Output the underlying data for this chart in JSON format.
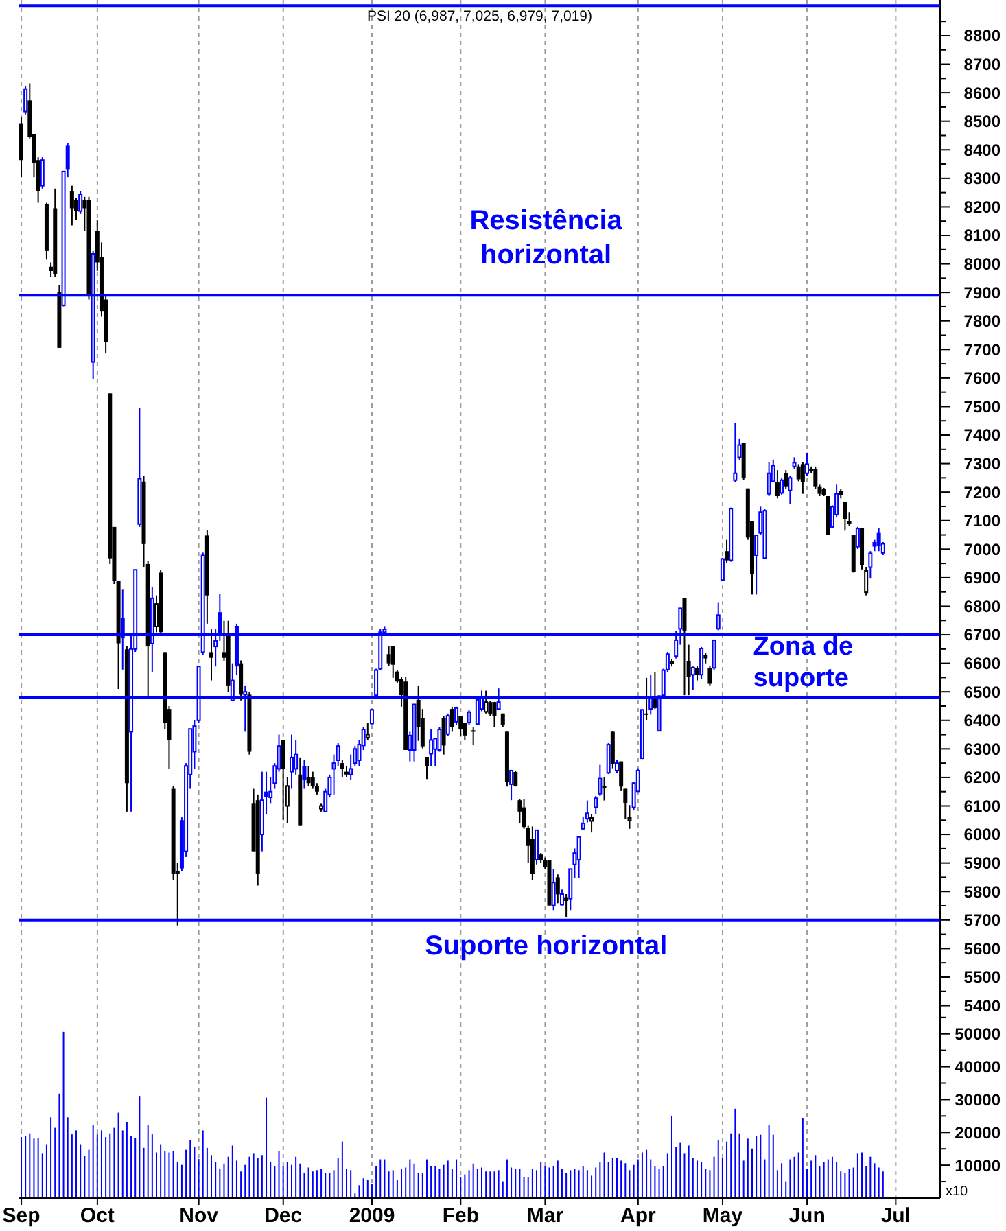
{
  "chart_data": [
    {
      "type": "candlestick",
      "title": "PSI 20 (6,987, 7,025, 6,979, 7,019)",
      "categories": [
        null,
        null,
        null,
        null,
        null,
        null,
        null,
        null,
        null,
        null,
        null,
        null,
        null,
        null,
        null,
        null,
        null,
        null,
        null,
        null,
        null,
        null,
        null,
        null,
        null,
        null,
        null,
        null,
        null,
        null,
        null,
        null,
        null,
        null,
        null,
        null,
        null,
        null,
        null,
        null,
        null,
        null,
        null,
        null,
        null,
        null,
        null,
        null,
        null,
        null,
        null,
        null,
        null,
        null,
        null,
        null,
        null,
        null,
        null,
        null,
        null,
        null,
        null,
        null,
        null,
        null,
        null,
        null,
        null,
        null,
        null,
        null,
        null,
        null,
        null,
        null,
        null,
        null,
        null,
        null,
        null,
        null,
        null,
        null,
        null,
        null,
        null,
        null,
        null,
        null,
        null,
        null,
        null,
        null,
        null,
        null,
        null,
        null,
        null,
        null,
        null,
        null,
        null,
        null,
        null,
        null,
        null,
        null,
        null,
        null,
        null,
        null,
        null,
        null,
        null,
        null,
        null,
        null,
        null,
        null,
        null,
        null,
        null,
        null,
        null,
        null,
        null,
        null,
        null,
        null,
        null,
        null,
        null,
        null,
        null,
        null,
        null,
        null,
        null,
        null,
        null,
        null,
        null,
        null,
        null,
        null,
        null,
        null,
        null,
        null,
        null,
        null,
        null,
        null,
        null,
        null,
        null,
        null,
        null,
        null,
        null,
        null,
        null,
        null,
        null,
        null,
        null,
        null,
        null,
        null,
        null,
        null,
        null,
        null,
        null,
        null,
        null,
        null,
        null,
        null,
        null,
        null,
        null,
        null,
        null,
        null,
        null,
        null,
        null,
        null,
        null,
        null,
        null,
        null,
        null,
        null,
        null,
        null,
        null,
        null,
        null,
        null,
        null,
        null,
        null,
        null,
        null,
        null,
        null,
        null,
        null,
        null,
        null,
        null,
        null,
        null,
        null,
        null
      ],
      "ohlc": [
        [
          8493,
          8514,
          8304,
          8364
        ],
        [
          8534,
          8623,
          8524,
          8613
        ],
        [
          8573,
          8633,
          8440,
          8444
        ],
        [
          8454,
          8454,
          8304,
          8354
        ],
        [
          8364,
          8374,
          8214,
          8254
        ],
        [
          8274,
          8374,
          8264,
          8364
        ],
        [
          8210,
          8214,
          8015,
          8045
        ],
        [
          7990,
          8005,
          7955,
          7975
        ],
        [
          8195,
          8264,
          7955,
          7965
        ],
        [
          7900,
          7925,
          7706,
          7706
        ],
        [
          7855,
          8324,
          7851,
          8324
        ],
        [
          8414,
          8424,
          8304,
          8330
        ],
        [
          8254,
          8274,
          8135,
          8195
        ],
        [
          8224,
          8230,
          8155,
          8185
        ],
        [
          8185,
          8254,
          8175,
          8244
        ],
        [
          8224,
          8235,
          8115,
          8195
        ],
        [
          8224,
          8235,
          7875,
          7895
        ],
        [
          7656,
          8045,
          7596,
          8035
        ],
        [
          8115,
          8154,
          7975,
          8005
        ],
        [
          8025,
          8075,
          7815,
          7835
        ],
        [
          7875,
          7895,
          7686,
          7726
        ],
        [
          7546,
          7546,
          6948,
          6968
        ],
        [
          7078,
          7078,
          6878,
          6888
        ],
        [
          6888,
          6890,
          6510,
          6670
        ],
        [
          6758,
          6858,
          6578,
          6688
        ],
        [
          6649,
          6660,
          6080,
          6180
        ],
        [
          6360,
          6700,
          6080,
          6650
        ],
        [
          6650,
          6928,
          6640,
          6928
        ],
        [
          7088,
          7496,
          7078,
          7247
        ],
        [
          7237,
          7257,
          6938,
          7018
        ],
        [
          6948,
          6958,
          6480,
          6659
        ],
        [
          6669,
          6868,
          6569,
          6828
        ],
        [
          6729,
          6838,
          6709,
          6808
        ],
        [
          6918,
          6928,
          6699,
          6709
        ],
        [
          6639,
          6639,
          6370,
          6390
        ],
        [
          6440,
          6450,
          6230,
          6330
        ],
        [
          6160,
          6170,
          5841,
          5861
        ],
        [
          5871,
          5900,
          5681,
          5861
        ],
        [
          6050,
          6060,
          5871,
          5881
        ],
        [
          5941,
          6250,
          5921,
          6240
        ],
        [
          6210,
          6370,
          6160,
          6370
        ],
        [
          6290,
          6400,
          6230,
          6380
        ],
        [
          6400,
          6589,
          6390,
          6589
        ],
        [
          6639,
          6988,
          6629,
          6978
        ],
        [
          7048,
          7068,
          6739,
          6838
        ],
        [
          6639,
          6719,
          6540,
          6619
        ],
        [
          6659,
          6719,
          6589,
          6679
        ],
        [
          6779,
          6843,
          6679,
          6703
        ],
        [
          6639,
          6749,
          6609,
          6619
        ],
        [
          6699,
          6749,
          6500,
          6520
        ],
        [
          6470,
          6600,
          6470,
          6540
        ],
        [
          6729,
          6739,
          6560,
          6589
        ],
        [
          6600,
          6610,
          6470,
          6490
        ],
        [
          6490,
          6520,
          6360,
          6500
        ],
        [
          6490,
          6500,
          6280,
          6290
        ],
        [
          6110,
          6160,
          5941,
          5941
        ],
        [
          6120,
          6140,
          5821,
          5861
        ],
        [
          6000,
          6220,
          5941,
          6120
        ],
        [
          6150,
          6220,
          6070,
          6130
        ],
        [
          6130,
          6200,
          6110,
          6150
        ],
        [
          6180,
          6250,
          6160,
          6240
        ],
        [
          6230,
          6350,
          6220,
          6310
        ],
        [
          6330,
          6330,
          6050,
          6230
        ],
        [
          6100,
          6200,
          6040,
          6170
        ],
        [
          6220,
          6350,
          6160,
          6270
        ],
        [
          6230,
          6330,
          6210,
          6280
        ],
        [
          6210,
          6270,
          6030,
          6030
        ],
        [
          6240,
          6260,
          6160,
          6190
        ],
        [
          6200,
          6240,
          6170,
          6180
        ],
        [
          6200,
          6220,
          6160,
          6170
        ],
        [
          6170,
          6180,
          6140,
          6150
        ],
        [
          6090,
          6110,
          6080,
          6100
        ],
        [
          6080,
          6160,
          6080,
          6150
        ],
        [
          6140,
          6210,
          6130,
          6200
        ],
        [
          6230,
          6280,
          6140,
          6250
        ],
        [
          6260,
          6320,
          6240,
          6310
        ],
        [
          6250,
          6260,
          6200,
          6230
        ],
        [
          6220,
          6240,
          6200,
          6210
        ],
        [
          6210,
          6280,
          6190,
          6230
        ],
        [
          6250,
          6310,
          6240,
          6300
        ],
        [
          6260,
          6330,
          6240,
          6315
        ],
        [
          6312,
          6376,
          6296,
          6368
        ],
        [
          6340,
          6392,
          6330,
          6350
        ],
        [
          6389,
          6440,
          6386,
          6437
        ],
        [
          6488,
          6581,
          6485,
          6576
        ],
        [
          6581,
          6720,
          6576,
          6709
        ],
        [
          6709,
          6728,
          6704,
          6719
        ],
        [
          6632,
          6660,
          6590,
          6600
        ],
        [
          6661,
          6661,
          6549,
          6595
        ],
        [
          6571,
          6575,
          6530,
          6536
        ],
        [
          6544,
          6552,
          6448,
          6488
        ],
        [
          6536,
          6552,
          6296,
          6296
        ],
        [
          6296,
          6360,
          6256,
          6347
        ],
        [
          6296,
          6456,
          6256,
          6456
        ],
        [
          6472,
          6520,
          6328,
          6376
        ],
        [
          6408,
          6440,
          6302,
          6309
        ],
        [
          6272,
          6272,
          6192,
          6240
        ],
        [
          6283,
          6368,
          6240,
          6331
        ],
        [
          6299,
          6336,
          6240,
          6336
        ],
        [
          6296,
          6376,
          6290,
          6368
        ],
        [
          6408,
          6416,
          6280,
          6312
        ],
        [
          6352,
          6424,
          6344,
          6416
        ],
        [
          6440,
          6445,
          6360,
          6376
        ],
        [
          6395,
          6448,
          6384,
          6443
        ],
        [
          6416,
          6416,
          6344,
          6368
        ],
        [
          6392,
          6392,
          6330,
          6347
        ],
        [
          6392,
          6437,
          6384,
          6429
        ],
        [
          6365,
          6376,
          6315,
          6360
        ],
        [
          6387,
          6480,
          6384,
          6472
        ],
        [
          6440,
          6504,
          6432,
          6480
        ],
        [
          6430,
          6504,
          6424,
          6464
        ],
        [
          6464,
          6467,
          6416,
          6421
        ],
        [
          6464,
          6464,
          6376,
          6416
        ],
        [
          6440,
          6512,
          6437,
          6464
        ],
        [
          6424,
          6424,
          6376,
          6384
        ],
        [
          6360,
          6360,
          6168,
          6184
        ],
        [
          6176,
          6224,
          6120,
          6224
        ],
        [
          6219,
          6224,
          6168,
          6171
        ],
        [
          6120,
          6125,
          6040,
          6080
        ],
        [
          6095,
          6123,
          6020,
          6026
        ],
        [
          6024,
          6030,
          5900,
          5960
        ],
        [
          5984,
          6028,
          5839,
          5863
        ],
        [
          5911,
          6015,
          5895,
          6015
        ],
        [
          5930,
          5935,
          5900,
          5911
        ],
        [
          5911,
          5919,
          5879,
          5887
        ],
        [
          5911,
          5911,
          5751,
          5751
        ],
        [
          5751,
          5879,
          5735,
          5831
        ],
        [
          5850,
          5860,
          5759,
          5790
        ],
        [
          5754,
          5807,
          5751,
          5791
        ],
        [
          5780,
          5791,
          5711,
          5767
        ],
        [
          5775,
          5879,
          5735,
          5879
        ],
        [
          5895,
          5951,
          5847,
          5935
        ],
        [
          5911,
          5994,
          5847,
          5991
        ],
        [
          6020,
          6063,
          6015,
          6039
        ],
        [
          6055,
          6119,
          6042,
          6074
        ],
        [
          6047,
          6071,
          6007,
          6058
        ],
        [
          6095,
          6135,
          6071,
          6127
        ],
        [
          6143,
          6244,
          6135,
          6196
        ],
        [
          6170,
          6200,
          6119,
          6163
        ],
        [
          6216,
          6320,
          6212,
          6315
        ],
        [
          6360,
          6363,
          6232,
          6248
        ],
        [
          6224,
          6260,
          6216,
          6250
        ],
        [
          6256,
          6256,
          6152,
          6168
        ],
        [
          6160,
          6160,
          6055,
          6111
        ],
        [
          6050,
          6103,
          6020,
          6058
        ],
        [
          6095,
          6183,
          6087,
          6180
        ],
        [
          6151,
          6232,
          6151,
          6224
        ],
        [
          6267,
          6440,
          6264,
          6437
        ],
        [
          6424,
          6549,
          6400,
          6420
        ],
        [
          6440,
          6560,
          6420,
          6480
        ],
        [
          6480,
          6568,
          6440,
          6443
        ],
        [
          6363,
          6488,
          6363,
          6485
        ],
        [
          6488,
          6581,
          6480,
          6576
        ],
        [
          6578,
          6640,
          6568,
          6632
        ],
        [
          6608,
          6616,
          6589,
          6597
        ],
        [
          6625,
          6713,
          6617,
          6681
        ],
        [
          6721,
          6793,
          6665,
          6793
        ],
        [
          6828,
          6828,
          6488,
          6713
        ],
        [
          6608,
          6665,
          6488,
          6552
        ],
        [
          6560,
          6589,
          6507,
          6585
        ],
        [
          6584,
          6590,
          6540,
          6560
        ],
        [
          6560,
          6657,
          6544,
          6652
        ],
        [
          6629,
          6635,
          6600,
          6617
        ],
        [
          6584,
          6592,
          6520,
          6528
        ],
        [
          6584,
          6681,
          6576,
          6681
        ],
        [
          6721,
          6812,
          6716,
          6769
        ],
        [
          6892,
          6969,
          6889,
          6966
        ],
        [
          6993,
          7033,
          6953,
          6961
        ],
        [
          6961,
          7146,
          6956,
          7142
        ],
        [
          7242,
          7442,
          7234,
          7266
        ],
        [
          7322,
          7386,
          7314,
          7365
        ],
        [
          7373,
          7373,
          7242,
          7250
        ],
        [
          7213,
          7213,
          7033,
          7041
        ],
        [
          7097,
          7097,
          6841,
          6913
        ],
        [
          6977,
          7049,
          6841,
          7049
        ],
        [
          7057,
          7149,
          7049,
          7130
        ],
        [
          6969,
          7140,
          6966,
          7135
        ],
        [
          7194,
          7306,
          7186,
          7266
        ],
        [
          7238,
          7314,
          7234,
          7293
        ],
        [
          7234,
          7277,
          7178,
          7186
        ],
        [
          7197,
          7250,
          7190,
          7242
        ],
        [
          7266,
          7277,
          7210,
          7218
        ],
        [
          7206,
          7258,
          7158,
          7250
        ],
        [
          7290,
          7322,
          7282,
          7303
        ],
        [
          7290,
          7298,
          7238,
          7245
        ],
        [
          7298,
          7306,
          7194,
          7234
        ],
        [
          7266,
          7338,
          7258,
          7298
        ],
        [
          7282,
          7290,
          7266,
          7274
        ],
        [
          7282,
          7290,
          7210,
          7218
        ],
        [
          7218,
          7226,
          7186,
          7194
        ],
        [
          7210,
          7215,
          7186,
          7190
        ],
        [
          7186,
          7186,
          7049,
          7049
        ],
        [
          7078,
          7154,
          7073,
          7149
        ],
        [
          7121,
          7226,
          7113,
          7194
        ],
        [
          7204,
          7210,
          7178,
          7190
        ],
        [
          7165,
          7165,
          7065,
          7105
        ],
        [
          7097,
          7130,
          7081,
          7089
        ],
        [
          7049,
          7049,
          6918,
          6921
        ],
        [
          7009,
          7078,
          7001,
          7073
        ],
        [
          7073,
          7073,
          6929,
          6945
        ],
        [
          6849,
          6937,
          6838,
          6924
        ],
        [
          6937,
          6993,
          6897,
          6985
        ],
        [
          7025,
          7033,
          6993,
          7009
        ],
        [
          7057,
          7073,
          6993,
          7012
        ],
        [
          6987,
          7025,
          6979,
          7019
        ],
        null,
        null,
        null,
        null,
        null,
        null,
        null,
        null,
        null,
        null,
        null,
        null,
        null
      ],
      "colors": [
        "#000000",
        "#0000ff",
        "#000000",
        "#000000",
        "#000000",
        "#0000ff",
        "#000000",
        "#000000",
        "#000000",
        "#000000",
        "#0000ff",
        "#0000ff",
        "#000000",
        "#000000",
        "#0000ff",
        "#000000",
        "#000000",
        "#0000ff",
        "#000000",
        "#000000",
        "#000000",
        "#000000",
        "#000000",
        "#000000",
        "#0000ff",
        "#000000",
        "#0000ff",
        "#0000ff",
        "#0000ff",
        "#000000",
        "#000000",
        "#0000ff",
        "#000000",
        "#000000",
        "#000000",
        "#000000",
        "#000000",
        "#000000",
        "#0000ff",
        "#0000ff",
        "#0000ff",
        "#0000ff",
        "#0000ff",
        "#0000ff",
        "#000000",
        "#000000",
        "#0000ff",
        "#0000ff",
        "#000000",
        "#000000",
        "#0000ff",
        "#0000ff",
        "#000000",
        "#0000ff",
        "#000000",
        "#000000",
        "#000000",
        "#0000ff",
        "#0000ff",
        "#0000ff",
        "#0000ff",
        "#0000ff",
        "#000000",
        "#000000",
        "#0000ff",
        "#0000ff",
        "#000000",
        "#0000ff",
        "#000000",
        "#000000",
        "#000000",
        "#000000",
        "#0000ff",
        "#0000ff",
        "#0000ff",
        "#0000ff",
        "#000000",
        "#000000",
        "#0000ff",
        "#0000ff",
        "#0000ff",
        "#0000ff",
        "#000000",
        "#0000ff",
        "#0000ff",
        "#0000ff",
        "#0000ff",
        "#000000",
        "#000000",
        "#000000",
        "#000000",
        "#000000",
        "#0000ff",
        "#0000ff",
        "#000000",
        "#000000",
        "#000000",
        "#0000ff",
        "#0000ff",
        "#0000ff",
        "#000000",
        "#0000ff",
        "#000000",
        "#0000ff",
        "#000000",
        "#000000",
        "#0000ff",
        "#000000",
        "#0000ff",
        "#0000ff",
        "#000000",
        "#000000",
        "#000000",
        "#0000ff",
        "#000000",
        "#000000",
        "#0000ff",
        "#000000",
        "#000000",
        "#000000",
        "#000000",
        "#000000",
        "#0000ff",
        "#000000",
        "#000000",
        "#000000",
        "#0000ff",
        "#000000",
        "#0000ff",
        "#000000",
        "#0000ff",
        "#0000ff",
        "#0000ff",
        "#0000ff",
        "#0000ff",
        "#000000",
        "#0000ff",
        "#0000ff",
        "#000000",
        "#0000ff",
        "#000000",
        "#0000ff",
        "#000000",
        "#000000",
        "#000000",
        "#0000ff",
        "#0000ff",
        "#0000ff",
        "#000000",
        "#0000ff",
        "#000000",
        "#0000ff",
        "#0000ff",
        "#0000ff",
        "#000000",
        "#0000ff",
        "#0000ff",
        "#000000",
        "#000000",
        "#0000ff",
        "#000000",
        "#0000ff",
        "#000000",
        "#000000",
        "#0000ff",
        "#0000ff",
        "#0000ff",
        "#000000",
        "#0000ff",
        "#0000ff",
        "#0000ff",
        "#000000",
        "#000000",
        "#000000",
        "#0000ff",
        "#0000ff",
        "#0000ff",
        "#0000ff",
        "#0000ff",
        "#000000",
        "#0000ff",
        "#000000",
        "#0000ff",
        "#0000ff",
        "#000000",
        "#000000",
        "#0000ff",
        "#000000",
        "#000000",
        "#000000",
        "#000000",
        "#000000",
        "#0000ff",
        "#0000ff",
        "#000000",
        "#000000",
        "#000000",
        "#000000",
        "#0000ff",
        "#000000",
        "#000000",
        "#0000ff",
        "#0000ff",
        "#0000ff",
        "#0000ff",
        null,
        null,
        null,
        null,
        null,
        null,
        null,
        null,
        null,
        null,
        null,
        null,
        null
      ],
      "ylim": [
        5370,
        8925
      ],
      "yticks": [
        5400,
        {
          "value": 5450,
          "label": null
        },
        5500,
        {
          "value": 5550,
          "label": null
        },
        5600,
        {
          "value": 5650,
          "label": null
        },
        5700,
        {
          "value": 5750,
          "label": null
        },
        5800,
        {
          "value": 5850,
          "label": null
        },
        5900,
        {
          "value": 5950,
          "label": null
        },
        6000,
        {
          "value": 6050,
          "label": null
        },
        6100,
        {
          "value": 6150,
          "label": null
        },
        6200,
        {
          "value": 6250,
          "label": null
        },
        6300,
        {
          "value": 6350,
          "label": null
        },
        6400,
        {
          "value": 6450,
          "label": null
        },
        6500,
        {
          "value": 6550,
          "label": null
        },
        6600,
        {
          "value": 6650,
          "label": null
        },
        6700,
        {
          "value": 6750,
          "label": null
        },
        6800,
        {
          "value": 6850,
          "label": null
        },
        6900,
        {
          "value": 6950,
          "label": null
        },
        7000,
        {
          "value": 7050,
          "label": null
        },
        7100,
        {
          "value": 7150,
          "label": null
        },
        7200,
        {
          "value": 7250,
          "label": null
        },
        7300,
        {
          "value": 7350,
          "label": null
        },
        7400,
        {
          "value": 7450,
          "label": null
        },
        7500,
        {
          "value": 7550,
          "label": null
        },
        7600,
        {
          "value": 7650,
          "label": null
        },
        7700,
        {
          "value": 7750,
          "label": null
        },
        7800,
        {
          "value": 7850,
          "label": null
        },
        7900,
        {
          "value": 7950,
          "label": null
        },
        8000,
        {
          "value": 8050,
          "label": null
        },
        8100,
        {
          "value": 8150,
          "label": null
        },
        8200,
        {
          "value": 8250,
          "label": null
        },
        8300,
        {
          "value": 8350,
          "label": null
        },
        8400,
        {
          "value": 8450,
          "label": null
        },
        8500,
        {
          "value": 8550,
          "label": null
        },
        8600,
        {
          "value": 8650,
          "label": null
        },
        8700,
        {
          "value": 8750,
          "label": null
        },
        8800,
        {
          "value": 8850,
          "label": null
        }
      ],
      "grid": "x",
      "tick_labels": "y",
      "ref_lines": [
        {
          "axis": "y",
          "value": 8905,
          "color": "#0000ff"
        },
        {
          "axis": "y",
          "value": 7890,
          "label": "Resistência horizontal",
          "color": "#0000ff"
        },
        {
          "axis": "y",
          "value": 6700,
          "color": "#0000ff"
        },
        {
          "axis": "y",
          "value": 6480,
          "color": "#0000ff"
        },
        {
          "axis": "y",
          "value": 5700,
          "label": "Suporte horizontal",
          "color": "#0000ff"
        }
      ],
      "annotations": [
        "Zona de suporte"
      ]
    },
    {
      "type": "bar",
      "categories": [
        "Sep",
        null,
        null,
        null,
        null,
        null,
        null,
        null,
        null,
        null,
        null,
        null,
        null,
        null,
        null,
        null,
        null,
        null,
        "Oct",
        null,
        null,
        null,
        null,
        null,
        null,
        null,
        null,
        null,
        null,
        null,
        null,
        null,
        null,
        null,
        null,
        null,
        null,
        null,
        null,
        null,
        null,
        null,
        "Nov",
        null,
        null,
        null,
        null,
        null,
        null,
        null,
        null,
        null,
        null,
        null,
        null,
        null,
        null,
        null,
        null,
        null,
        null,
        null,
        "Dec",
        null,
        null,
        null,
        null,
        null,
        null,
        null,
        null,
        null,
        null,
        null,
        null,
        null,
        null,
        null,
        null,
        null,
        null,
        null,
        null,
        "2009",
        null,
        null,
        null,
        null,
        null,
        null,
        null,
        null,
        null,
        null,
        null,
        null,
        null,
        null,
        null,
        null,
        null,
        null,
        null,
        null,
        "Feb",
        null,
        null,
        null,
        null,
        null,
        null,
        null,
        null,
        null,
        null,
        null,
        null,
        null,
        null,
        null,
        null,
        null,
        null,
        null,
        "Mar",
        null,
        null,
        null,
        null,
        null,
        null,
        null,
        null,
        null,
        null,
        null,
        null,
        null,
        null,
        null,
        null,
        null,
        null,
        null,
        null,
        null,
        "Apr",
        null,
        null,
        null,
        null,
        null,
        null,
        null,
        null,
        null,
        null,
        null,
        null,
        null,
        null,
        null,
        null,
        null,
        null,
        null,
        "May",
        null,
        null,
        null,
        null,
        null,
        null,
        null,
        null,
        null,
        null,
        null,
        null,
        null,
        null,
        null,
        null,
        null,
        null,
        null,
        "Jun",
        null,
        null,
        null,
        null,
        null,
        null,
        null,
        null,
        null,
        null,
        null,
        null,
        null,
        null,
        null,
        null,
        null,
        null,
        null,
        null,
        "Jul",
        null,
        null,
        null,
        null,
        null,
        null,
        null,
        null,
        null,
        null
      ],
      "values": [
        18600,
        18900,
        19700,
        18100,
        18300,
        13500,
        16400,
        24600,
        21400,
        31800,
        50600,
        24600,
        19400,
        20600,
        16400,
        12800,
        14700,
        22200,
        19400,
        20600,
        18600,
        19700,
        21400,
        26000,
        20600,
        23200,
        18900,
        18300,
        31100,
        15300,
        22200,
        19400,
        13900,
        16400,
        14300,
        13900,
        14300,
        11000,
        10100,
        14700,
        17600,
        15500,
        11900,
        20600,
        15300,
        13100,
        11000,
        8900,
        10500,
        12600,
        16000,
        11400,
        8100,
        10100,
        12600,
        13500,
        12200,
        13100,
        30600,
        11000,
        9700,
        14300,
        9700,
        11000,
        10100,
        12600,
        10500,
        7600,
        9300,
        8100,
        8500,
        8900,
        7600,
        7600,
        8500,
        12200,
        17200,
        8900,
        8500,
        1400,
        3900,
        6000,
        5500,
        4300,
        9700,
        11800,
        11800,
        8100,
        8500,
        5500,
        8900,
        9300,
        11800,
        10500,
        7600,
        7600,
        11800,
        9700,
        9700,
        8900,
        10100,
        11400,
        8900,
        11800,
        6400,
        7200,
        8500,
        10500,
        8900,
        9300,
        8100,
        8100,
        8100,
        8500,
        5100,
        11800,
        9300,
        8900,
        8900,
        6400,
        6400,
        8900,
        8500,
        11000,
        9700,
        9300,
        9700,
        11400,
        8900,
        7600,
        8500,
        8900,
        8500,
        9700,
        8500,
        6800,
        9300,
        11000,
        13900,
        11000,
        12200,
        12200,
        11400,
        10600,
        8500,
        10100,
        11800,
        13900,
        14700,
        11800,
        9700,
        8900,
        9700,
        13500,
        25100,
        15600,
        16800,
        13500,
        16000,
        12200,
        11400,
        11000,
        8900,
        8500,
        12600,
        17600,
        12200,
        17200,
        19700,
        27200,
        19700,
        11400,
        18100,
        15100,
        18900,
        19300,
        11800,
        22200,
        19300,
        8500,
        10600,
        5100,
        11800,
        12600,
        13900,
        24300,
        8900,
        11400,
        13100,
        9700,
        11000,
        11800,
        12600,
        11000,
        8100,
        7600,
        8900,
        9300,
        13500,
        13900,
        9700,
        12600,
        10600,
        9300,
        8100,
        null,
        null,
        null,
        null,
        null,
        null,
        null,
        null,
        null,
        null,
        null,
        null,
        null
      ],
      "color": "#0000ff",
      "ylim": [
        0,
        56000
      ],
      "yticks": [
        {
          "value": 5000,
          "label": null
        },
        10000,
        {
          "value": 15000,
          "label": null
        },
        20000,
        {
          "value": 25000,
          "label": null
        },
        30000,
        {
          "value": 35000,
          "label": null
        },
        40000,
        {
          "value": 45000,
          "label": null
        },
        50000,
        {
          "value": 55000,
          "label": null
        }
      ],
      "grid": "x",
      "ylabel": "x10"
    }
  ]
}
